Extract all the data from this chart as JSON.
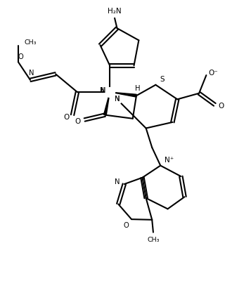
{
  "bg": "#ffffff",
  "lc": "#000000",
  "lw": 1.5,
  "fw": 3.57,
  "fh": 4.37,
  "dpi": 100,
  "xlim": [
    0,
    10
  ],
  "ylim": [
    0,
    12.5
  ]
}
